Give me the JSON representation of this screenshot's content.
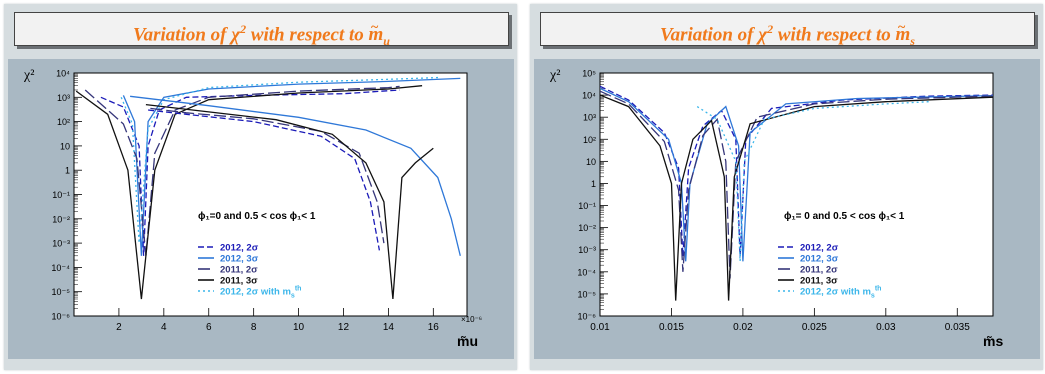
{
  "panels": [
    {
      "title_pre": "Variation of ",
      "title_chi": "χ",
      "title_sup": "2",
      "title_mid": " with respect to ",
      "title_var": "m",
      "title_sub": "u",
      "annotation": "ϕ₁=0 and 0.5 < cos ϕ₁< 1"
    },
    {
      "title_pre": "Variation of ",
      "title_chi": "χ",
      "title_sup": "2",
      "title_mid": " with respect to ",
      "title_var": "m",
      "title_sub": "s",
      "annotation": "ϕ₁= 0 and 0.5 < cos ϕ₁< 1"
    }
  ],
  "legend": [
    {
      "label": "2012, 2σ",
      "label_sup": "",
      "color": "#1b1bb8",
      "dash": "6,3"
    },
    {
      "label": "2012, 3σ",
      "label_sup": "",
      "color": "#2f78d8",
      "dash": ""
    },
    {
      "label": "2011, 2σ",
      "label_sup": "",
      "color": "#36367a",
      "dash": "12,4"
    },
    {
      "label": "2011, 3σ",
      "label_sup": "",
      "color": "#111111",
      "dash": ""
    },
    {
      "label": "2012, 2σ with m",
      "label_sup": "s th",
      "color": "#3bb6ea",
      "dash": "2,3"
    }
  ],
  "chart_data": [
    {
      "type": "line",
      "title": "Variation of χ² with respect to m̃u",
      "ylabel": "χ²",
      "xlabel": "m̃u",
      "x_multiplier": "×10⁻⁶",
      "x_unit_scale": 1e-06,
      "y_scale": "log",
      "xlim": [
        0,
        17.5
      ],
      "ylim": [
        1e-06,
        10000
      ],
      "x_ticks": [
        2,
        4,
        6,
        8,
        10,
        12,
        14,
        16
      ],
      "x_tick_labels": [
        "2",
        "4",
        "6",
        "8",
        "10",
        "12",
        "14",
        "16"
      ],
      "y_ticks": [
        1e-06,
        1e-05,
        0.0001,
        0.001,
        0.01,
        0.1,
        1,
        10,
        100,
        1000,
        10000
      ],
      "y_tick_labels": [
        "10⁻⁶",
        "10⁻⁵",
        "10⁻⁴",
        "10⁻³",
        "10⁻²",
        "10⁻¹",
        "1",
        "10",
        "10²",
        "10³",
        "10⁴"
      ],
      "series": [
        {
          "name": "2012, 2σ",
          "points": [
            [
              1.2,
              1000
            ],
            [
              2.2,
              400
            ],
            [
              2.9,
              10
            ],
            [
              3.1,
              0.0003
            ],
            [
              3.3,
              10
            ],
            [
              3.8,
              300
            ],
            [
              5,
              1000
            ],
            [
              8,
              1200
            ],
            [
              12,
              1400
            ],
            [
              14.5,
              2000
            ]
          ]
        },
        {
          "name": "2012, 3σ",
          "points": [
            [
              2.2,
              1200
            ],
            [
              2.7,
              100
            ],
            [
              3.0,
              0.0003
            ],
            [
              3.3,
              100
            ],
            [
              4,
              1000
            ],
            [
              6,
              2200
            ],
            [
              10,
              3500
            ],
            [
              14,
              4500
            ],
            [
              17.2,
              6000
            ]
          ]
        },
        {
          "name": "2011, 2σ",
          "points": [
            [
              0.5,
              2000
            ],
            [
              2.2,
              80
            ],
            [
              2.8,
              3
            ],
            [
              3.2,
              0.0003
            ],
            [
              3.6,
              5
            ],
            [
              4.5,
              300
            ],
            [
              6,
              1000
            ],
            [
              10,
              1800
            ],
            [
              14,
              2500
            ],
            [
              14.5,
              2800
            ]
          ]
        },
        {
          "name": "2011, 3σ",
          "points": [
            [
              0.1,
              1800
            ],
            [
              1.5,
              200
            ],
            [
              2.4,
              1
            ],
            [
              3.0,
              5e-06
            ],
            [
              3.6,
              1
            ],
            [
              4.5,
              200
            ],
            [
              6,
              800
            ],
            [
              10,
              1500
            ],
            [
              14,
              2200
            ],
            [
              15.5,
              3000
            ]
          ]
        },
        {
          "name": "2012, 2σ with m_s^th",
          "points": [
            [
              2.1,
              1000
            ],
            [
              2.6,
              80
            ],
            [
              2.9,
              0.001
            ],
            [
              3.3,
              50
            ],
            [
              4,
              800
            ],
            [
              6,
              2500
            ],
            [
              10,
              4200
            ],
            [
              14,
              5500
            ],
            [
              16.3,
              6500
            ]
          ]
        },
        {
          "points": [
            [
              3.3,
              300
            ],
            [
              5,
              200
            ],
            [
              8,
              100
            ],
            [
              11,
              25
            ],
            [
              12.5,
              3
            ],
            [
              13.2,
              0.05
            ],
            [
              13.6,
              0.0005
            ]
          ]
        },
        {
          "points": [
            [
              3.4,
              350
            ],
            [
              5,
              230
            ],
            [
              8,
              130
            ],
            [
              11,
              40
            ],
            [
              12.7,
              5
            ],
            [
              13.5,
              0.05
            ],
            [
              13.8,
              0.001
            ]
          ]
        },
        {
          "points": [
            [
              2.5,
              1100
            ],
            [
              6,
              450
            ],
            [
              10,
              150
            ],
            [
              13,
              45
            ],
            [
              15,
              8
            ],
            [
              16.2,
              0.5
            ],
            [
              16.8,
              0.01
            ],
            [
              17.2,
              0.0003
            ]
          ]
        },
        {
          "points": [
            [
              3.2,
              500
            ],
            [
              6,
              250
            ],
            [
              9,
              120
            ],
            [
              11.5,
              30
            ],
            [
              13,
              2
            ],
            [
              13.8,
              0.05
            ],
            [
              14.2,
              5e-06
            ],
            [
              14.6,
              0.5
            ],
            [
              15.2,
              2
            ],
            [
              16,
              8
            ]
          ]
        }
      ]
    },
    {
      "type": "line",
      "title": "Variation of χ² with respect to m̃s",
      "ylabel": "χ²",
      "xlabel": "m̃s",
      "y_scale": "log",
      "xlim": [
        0.01,
        0.0375
      ],
      "ylim": [
        1e-06,
        100000
      ],
      "x_ticks": [
        0.01,
        0.015,
        0.02,
        0.025,
        0.03,
        0.035
      ],
      "x_tick_labels": [
        "0.01",
        "0.015",
        "0.02",
        "0.025",
        "0.03",
        "0.035"
      ],
      "y_ticks": [
        1e-06,
        1e-05,
        0.0001,
        0.001,
        0.01,
        0.1,
        1,
        10,
        100,
        1000,
        10000,
        100000
      ],
      "y_tick_labels": [
        "10⁻⁶",
        "10⁻⁵",
        "10⁻⁴",
        "10⁻³",
        "10⁻²",
        "10⁻¹",
        "1",
        "10",
        "10²",
        "10³",
        "10⁴",
        "10⁵"
      ],
      "series": [
        {
          "name": "2012, 2σ",
          "points": [
            [
              0.01,
              25000
            ],
            [
              0.012,
              6000
            ],
            [
              0.0145,
              200
            ],
            [
              0.0155,
              5
            ],
            [
              0.0158,
              0.0005
            ],
            [
              0.0162,
              5
            ],
            [
              0.0172,
              400
            ],
            [
              0.0185,
              2000
            ],
            [
              0.0195,
              100
            ],
            [
              0.0198,
              0.0005
            ],
            [
              0.0202,
              100
            ],
            [
              0.022,
              2500
            ],
            [
              0.027,
              6000
            ],
            [
              0.033,
              9000
            ],
            [
              0.0375,
              10000
            ]
          ]
        },
        {
          "name": "2012, 3σ",
          "points": [
            [
              0.01,
              20000
            ],
            [
              0.012,
              5000
            ],
            [
              0.0148,
              100
            ],
            [
              0.0157,
              1
            ],
            [
              0.016,
              0.0003
            ],
            [
              0.0163,
              1
            ],
            [
              0.0175,
              500
            ],
            [
              0.0188,
              3000
            ],
            [
              0.0197,
              50
            ],
            [
              0.02,
              0.0003
            ],
            [
              0.0205,
              200
            ],
            [
              0.023,
              4000
            ],
            [
              0.028,
              7000
            ],
            [
              0.0375,
              9500
            ]
          ]
        },
        {
          "name": "2011, 2σ",
          "points": [
            [
              0.01,
              15000
            ],
            [
              0.012,
              4000
            ],
            [
              0.0145,
              80
            ],
            [
              0.0155,
              0.5
            ],
            [
              0.0158,
              0.0001
            ],
            [
              0.0162,
              0.5
            ],
            [
              0.0172,
              150
            ],
            [
              0.0182,
              800
            ],
            [
              0.0188,
              10
            ],
            [
              0.0191,
              5e-05
            ],
            [
              0.0195,
              10
            ],
            [
              0.021,
              1000
            ],
            [
              0.025,
              4000
            ],
            [
              0.03,
              6500
            ],
            [
              0.0375,
              9000
            ]
          ]
        },
        {
          "name": "2011, 3σ",
          "points": [
            [
              0.01,
              10000
            ],
            [
              0.012,
              3000
            ],
            [
              0.0142,
              50
            ],
            [
              0.015,
              1
            ],
            [
              0.0153,
              5e-06
            ],
            [
              0.0157,
              1
            ],
            [
              0.0165,
              100
            ],
            [
              0.0178,
              700
            ],
            [
              0.0187,
              2
            ],
            [
              0.019,
              5e-06
            ],
            [
              0.0194,
              2
            ],
            [
              0.0205,
              500
            ],
            [
              0.025,
              3000
            ],
            [
              0.03,
              5000
            ],
            [
              0.0375,
              8000
            ]
          ]
        },
        {
          "name": "2012, 2σ with m_s^th",
          "points": [
            [
              0.0168,
              3000
            ],
            [
              0.0182,
              800
            ],
            [
              0.0195,
              10
            ],
            [
              0.0198,
              0.0003
            ],
            [
              0.0201,
              10
            ],
            [
              0.0215,
              800
            ],
            [
              0.025,
              2500
            ],
            [
              0.03,
              4000
            ],
            [
              0.033,
              5000
            ]
          ]
        }
      ]
    }
  ]
}
